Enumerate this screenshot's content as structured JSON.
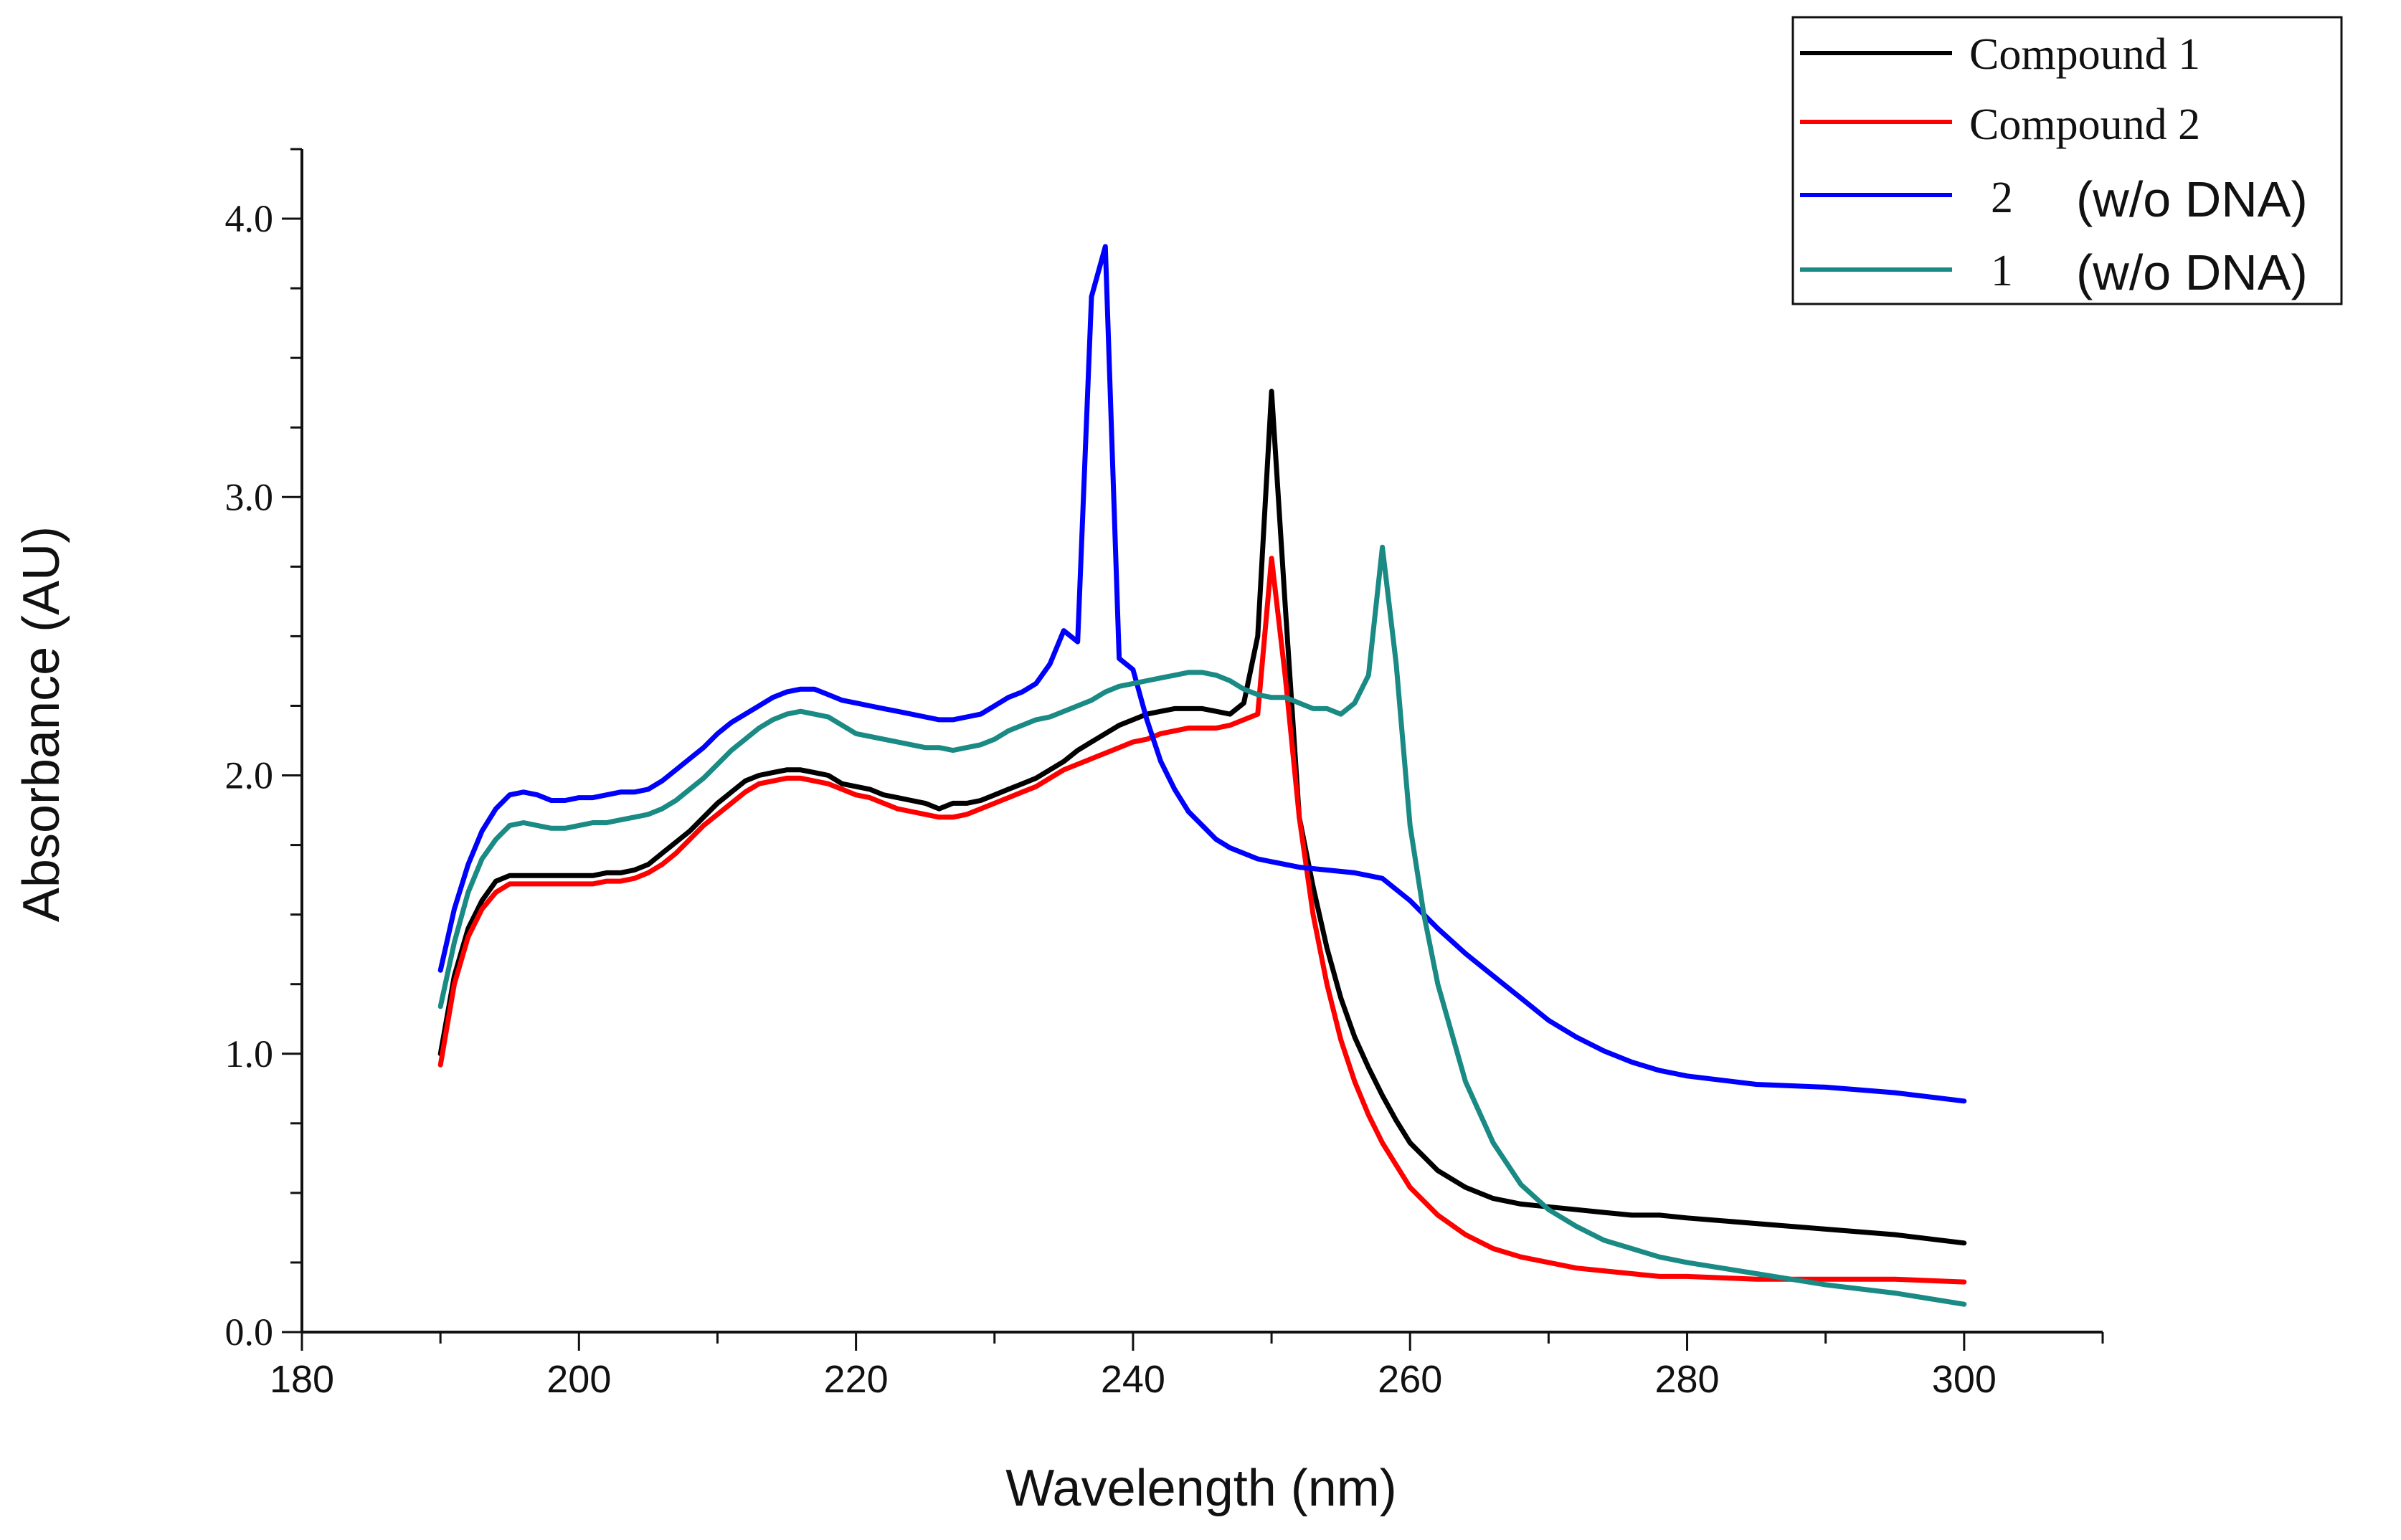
{
  "chart_data": {
    "type": "line",
    "title": "",
    "xlabel": "Wavelength (nm)",
    "ylabel": "Absorbance (AU)",
    "xlim": [
      180,
      310
    ],
    "ylim": [
      0,
      4.25
    ],
    "x_ticks": [
      180,
      200,
      220,
      240,
      260,
      280,
      300
    ],
    "x_tick_labels": [
      "180",
      "200",
      "220",
      "240",
      "260",
      "280",
      "300"
    ],
    "y_ticks": [
      0,
      1,
      2,
      3,
      4
    ],
    "y_tick_labels": [
      "0.0",
      "1.0",
      "2.0",
      "3.0",
      "4.0"
    ],
    "grid": false,
    "legend_position": "top-right",
    "legend": [
      {
        "id": "compound1",
        "prefix": "Compound 1",
        "suffix": ""
      },
      {
        "id": "compound2",
        "prefix": "Compound 2",
        "suffix": ""
      },
      {
        "id": "w2",
        "prefix": "2",
        "suffix": "(w/o DNA)"
      },
      {
        "id": "w1",
        "prefix": "1",
        "suffix": "(w/o DNA)"
      }
    ],
    "series": [
      {
        "id": "compound1",
        "name": "Compound 1",
        "color": "#000000",
        "x": [
          190,
          191,
          192,
          193,
          194,
          195,
          196,
          197,
          198,
          199,
          200,
          201,
          202,
          203,
          204,
          205,
          206,
          207,
          208,
          209,
          210,
          211,
          212,
          213,
          214,
          215,
          216,
          217,
          218,
          219,
          220,
          221,
          222,
          223,
          224,
          225,
          226,
          227,
          228,
          229,
          230,
          231,
          232,
          233,
          234,
          235,
          236,
          237,
          238,
          239,
          240,
          241,
          242,
          243,
          244,
          245,
          246,
          247,
          248,
          249,
          250,
          251,
          252,
          253,
          254,
          255,
          256,
          257,
          258,
          259,
          260,
          262,
          264,
          266,
          268,
          270,
          272,
          274,
          276,
          278,
          280,
          285,
          290,
          295,
          300
        ],
        "y": [
          1.0,
          1.28,
          1.45,
          1.55,
          1.62,
          1.64,
          1.64,
          1.64,
          1.64,
          1.64,
          1.64,
          1.64,
          1.65,
          1.65,
          1.66,
          1.68,
          1.72,
          1.76,
          1.8,
          1.85,
          1.9,
          1.94,
          1.98,
          2.0,
          2.01,
          2.02,
          2.02,
          2.01,
          2.0,
          1.97,
          1.96,
          1.95,
          1.93,
          1.92,
          1.91,
          1.9,
          1.88,
          1.9,
          1.9,
          1.91,
          1.93,
          1.95,
          1.97,
          1.99,
          2.02,
          2.05,
          2.09,
          2.12,
          2.15,
          2.18,
          2.2,
          2.22,
          2.23,
          2.24,
          2.24,
          2.24,
          2.23,
          2.22,
          2.26,
          2.5,
          3.38,
          2.6,
          1.85,
          1.6,
          1.38,
          1.2,
          1.06,
          0.95,
          0.85,
          0.76,
          0.68,
          0.58,
          0.52,
          0.48,
          0.46,
          0.45,
          0.44,
          0.43,
          0.42,
          0.42,
          0.41,
          0.39,
          0.37,
          0.35,
          0.32
        ]
      },
      {
        "id": "compound2",
        "name": "Compound 2",
        "color": "#ff0000",
        "x": [
          190,
          191,
          192,
          193,
          194,
          195,
          196,
          197,
          198,
          199,
          200,
          201,
          202,
          203,
          204,
          205,
          206,
          207,
          208,
          209,
          210,
          211,
          212,
          213,
          214,
          215,
          216,
          217,
          218,
          219,
          220,
          221,
          222,
          223,
          224,
          225,
          226,
          227,
          228,
          229,
          230,
          231,
          232,
          233,
          234,
          235,
          236,
          237,
          238,
          239,
          240,
          241,
          242,
          243,
          244,
          245,
          246,
          247,
          248,
          249,
          250,
          251,
          252,
          253,
          254,
          255,
          256,
          257,
          258,
          259,
          260,
          262,
          264,
          266,
          268,
          270,
          272,
          274,
          276,
          278,
          280,
          285,
          290,
          295,
          300
        ],
        "y": [
          0.96,
          1.25,
          1.42,
          1.52,
          1.58,
          1.61,
          1.61,
          1.61,
          1.61,
          1.61,
          1.61,
          1.61,
          1.62,
          1.62,
          1.63,
          1.65,
          1.68,
          1.72,
          1.77,
          1.82,
          1.86,
          1.9,
          1.94,
          1.97,
          1.98,
          1.99,
          1.99,
          1.98,
          1.97,
          1.95,
          1.93,
          1.92,
          1.9,
          1.88,
          1.87,
          1.86,
          1.85,
          1.85,
          1.86,
          1.88,
          1.9,
          1.92,
          1.94,
          1.96,
          1.99,
          2.02,
          2.04,
          2.06,
          2.08,
          2.1,
          2.12,
          2.13,
          2.15,
          2.16,
          2.17,
          2.17,
          2.17,
          2.18,
          2.2,
          2.22,
          2.78,
          2.35,
          1.85,
          1.5,
          1.25,
          1.05,
          0.9,
          0.78,
          0.68,
          0.6,
          0.52,
          0.42,
          0.35,
          0.3,
          0.27,
          0.25,
          0.23,
          0.22,
          0.21,
          0.2,
          0.2,
          0.19,
          0.19,
          0.19,
          0.18
        ]
      },
      {
        "id": "w2",
        "name": "2 (w/o DNA)",
        "color": "#0000ff",
        "x": [
          190,
          191,
          192,
          193,
          194,
          195,
          196,
          197,
          198,
          199,
          200,
          201,
          202,
          203,
          204,
          205,
          206,
          207,
          208,
          209,
          210,
          211,
          212,
          213,
          214,
          215,
          216,
          217,
          218,
          219,
          220,
          221,
          222,
          223,
          224,
          225,
          226,
          227,
          228,
          229,
          230,
          231,
          232,
          233,
          234,
          235,
          236,
          237,
          238,
          239,
          240,
          241,
          242,
          243,
          244,
          245,
          246,
          247,
          248,
          249,
          250,
          252,
          254,
          256,
          258,
          260,
          262,
          264,
          266,
          268,
          270,
          272,
          274,
          276,
          278,
          280,
          285,
          290,
          295,
          300
        ],
        "y": [
          1.3,
          1.52,
          1.68,
          1.8,
          1.88,
          1.93,
          1.94,
          1.93,
          1.91,
          1.91,
          1.92,
          1.92,
          1.93,
          1.94,
          1.94,
          1.95,
          1.98,
          2.02,
          2.06,
          2.1,
          2.15,
          2.19,
          2.22,
          2.25,
          2.28,
          2.3,
          2.31,
          2.31,
          2.29,
          2.27,
          2.26,
          2.25,
          2.24,
          2.23,
          2.22,
          2.21,
          2.2,
          2.2,
          2.21,
          2.22,
          2.25,
          2.28,
          2.3,
          2.33,
          2.4,
          2.52,
          2.48,
          3.72,
          3.9,
          2.42,
          2.38,
          2.2,
          2.05,
          1.95,
          1.87,
          1.82,
          1.77,
          1.74,
          1.72,
          1.7,
          1.69,
          1.67,
          1.66,
          1.65,
          1.63,
          1.55,
          1.45,
          1.36,
          1.28,
          1.2,
          1.12,
          1.06,
          1.01,
          0.97,
          0.94,
          0.92,
          0.89,
          0.88,
          0.86,
          0.83
        ]
      },
      {
        "id": "w1",
        "name": "1 (w/o DNA)",
        "color": "#1a8a84",
        "x": [
          190,
          191,
          192,
          193,
          194,
          195,
          196,
          197,
          198,
          199,
          200,
          201,
          202,
          203,
          204,
          205,
          206,
          207,
          208,
          209,
          210,
          211,
          212,
          213,
          214,
          215,
          216,
          217,
          218,
          219,
          220,
          221,
          222,
          223,
          224,
          225,
          226,
          227,
          228,
          229,
          230,
          231,
          232,
          233,
          234,
          235,
          236,
          237,
          238,
          239,
          240,
          241,
          242,
          243,
          244,
          245,
          246,
          247,
          248,
          249,
          250,
          251,
          252,
          253,
          254,
          255,
          256,
          257,
          258,
          259,
          260,
          261,
          262,
          264,
          266,
          268,
          270,
          272,
          274,
          276,
          278,
          280,
          285,
          290,
          295,
          300
        ],
        "y": [
          1.17,
          1.4,
          1.58,
          1.7,
          1.77,
          1.82,
          1.83,
          1.82,
          1.81,
          1.81,
          1.82,
          1.83,
          1.83,
          1.84,
          1.85,
          1.86,
          1.88,
          1.91,
          1.95,
          1.99,
          2.04,
          2.09,
          2.13,
          2.17,
          2.2,
          2.22,
          2.23,
          2.22,
          2.21,
          2.18,
          2.15,
          2.14,
          2.13,
          2.12,
          2.11,
          2.1,
          2.1,
          2.09,
          2.1,
          2.11,
          2.13,
          2.16,
          2.18,
          2.2,
          2.21,
          2.23,
          2.25,
          2.27,
          2.3,
          2.32,
          2.33,
          2.34,
          2.35,
          2.36,
          2.37,
          2.37,
          2.36,
          2.34,
          2.31,
          2.29,
          2.28,
          2.28,
          2.26,
          2.24,
          2.24,
          2.22,
          2.26,
          2.36,
          2.82,
          2.4,
          1.82,
          1.5,
          1.25,
          0.9,
          0.68,
          0.53,
          0.44,
          0.38,
          0.33,
          0.3,
          0.27,
          0.25,
          0.21,
          0.17,
          0.14,
          0.1
        ]
      }
    ]
  }
}
